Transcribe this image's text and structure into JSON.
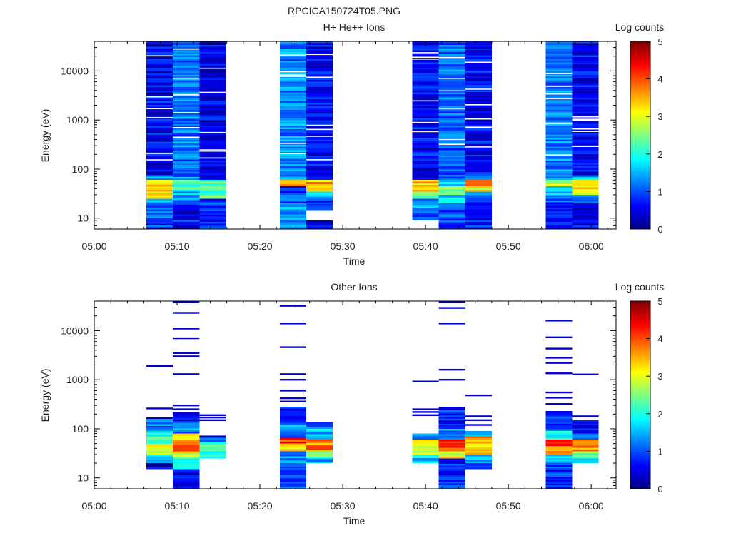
{
  "figure": {
    "title": "RPCICA150724T05.PNG"
  },
  "colorbar": {
    "label": "Log counts",
    "ticks": [
      "0",
      "1",
      "2",
      "3",
      "4",
      "5"
    ],
    "min": 0,
    "max": 5,
    "colors": [
      "#00007f",
      "#0000ff",
      "#007fff",
      "#00ffff",
      "#7fff7f",
      "#ffff00",
      "#ff7f00",
      "#ff0000",
      "#7f0000"
    ]
  },
  "chart_data": [
    {
      "type": "heatmap",
      "title": "H+ He++ Ions",
      "xlabel": "Time",
      "ylabel": "Energy (eV)",
      "x_ticks": [
        "05:00",
        "05:10",
        "05:20",
        "05:30",
        "05:40",
        "05:50",
        "06:00"
      ],
      "x_range_min": [
        0,
        63
      ],
      "y_scale": "log",
      "y_ticks": [
        "10",
        "100",
        "1000",
        "10000"
      ],
      "y_range": [
        6,
        40000
      ],
      "columns": [
        {
          "t0": 6.3,
          "t1": 9.5,
          "bands": [
            {
              "e0": 6,
              "e1": 10,
              "v": 0.9
            },
            {
              "e0": 10,
              "e1": 15,
              "v": 1.0
            },
            {
              "e0": 15,
              "e1": 25,
              "v": 1.3
            },
            {
              "e0": 25,
              "e1": 35,
              "v": 3.1
            },
            {
              "e0": 35,
              "e1": 60,
              "v": 3.3
            },
            {
              "e0": 60,
              "e1": 75,
              "v": 1.6
            },
            {
              "e0": 75,
              "e1": 40000,
              "v": 0.6
            }
          ]
        },
        {
          "t0": 9.5,
          "t1": 12.7,
          "bands": [
            {
              "e0": 6,
              "e1": 10,
              "v": 0.7
            },
            {
              "e0": 10,
              "e1": 20,
              "v": 0.6
            },
            {
              "e0": 20,
              "e1": 35,
              "v": 1.4
            },
            {
              "e0": 35,
              "e1": 60,
              "v": 2.1
            },
            {
              "e0": 60,
              "e1": 75,
              "v": 1.3
            },
            {
              "e0": 75,
              "e1": 40000,
              "v": 1.2
            }
          ]
        },
        {
          "t0": 12.7,
          "t1": 15.9,
          "bands": [
            {
              "e0": 6,
              "e1": 25,
              "v": 0.8
            },
            {
              "e0": 25,
              "e1": 60,
              "v": 2.2
            },
            {
              "e0": 60,
              "e1": 40000,
              "v": 0.5
            }
          ]
        },
        {
          "t0": 22.4,
          "t1": 25.6,
          "bands": [
            {
              "e0": 6,
              "e1": 10,
              "v": 1.2
            },
            {
              "e0": 10,
              "e1": 20,
              "v": 1.3
            },
            {
              "e0": 20,
              "e1": 30,
              "v": 1.0
            },
            {
              "e0": 30,
              "e1": 45,
              "v": 0.7
            },
            {
              "e0": 45,
              "e1": 60,
              "v": 3.4
            },
            {
              "e0": 60,
              "e1": 40000,
              "v": 1.3
            }
          ]
        },
        {
          "t0": 25.6,
          "t1": 28.8,
          "bands": [
            {
              "e0": 6,
              "e1": 9,
              "v": 0.5
            },
            {
              "e0": 14,
              "e1": 25,
              "v": 0.9
            },
            {
              "e0": 25,
              "e1": 35,
              "v": 1.5
            },
            {
              "e0": 35,
              "e1": 45,
              "v": 3.0
            },
            {
              "e0": 45,
              "e1": 60,
              "v": 3.6
            },
            {
              "e0": 60,
              "e1": 40000,
              "v": 0.6
            }
          ]
        },
        {
          "t0": 38.4,
          "t1": 41.6,
          "bands": [
            {
              "e0": 9,
              "e1": 15,
              "v": 0.9
            },
            {
              "e0": 15,
              "e1": 25,
              "v": 1.3
            },
            {
              "e0": 25,
              "e1": 35,
              "v": 2.2
            },
            {
              "e0": 35,
              "e1": 60,
              "v": 3.4
            },
            {
              "e0": 60,
              "e1": 40000,
              "v": 0.6
            }
          ]
        },
        {
          "t0": 41.6,
          "t1": 44.8,
          "bands": [
            {
              "e0": 6,
              "e1": 20,
              "v": 0.9
            },
            {
              "e0": 20,
              "e1": 30,
              "v": 1.6
            },
            {
              "e0": 30,
              "e1": 45,
              "v": 2.4
            },
            {
              "e0": 45,
              "e1": 60,
              "v": 1.9
            },
            {
              "e0": 60,
              "e1": 40000,
              "v": 1.1
            }
          ]
        },
        {
          "t0": 44.8,
          "t1": 48.0,
          "bands": [
            {
              "e0": 6,
              "e1": 25,
              "v": 0.7
            },
            {
              "e0": 25,
              "e1": 35,
              "v": 1.2
            },
            {
              "e0": 35,
              "e1": 45,
              "v": 3.1
            },
            {
              "e0": 45,
              "e1": 60,
              "v": 3.6
            },
            {
              "e0": 60,
              "e1": 80,
              "v": 1.3
            },
            {
              "e0": 80,
              "e1": 40000,
              "v": 0.6
            }
          ]
        },
        {
          "t0": 54.5,
          "t1": 57.7,
          "bands": [
            {
              "e0": 6,
              "e1": 25,
              "v": 0.9
            },
            {
              "e0": 25,
              "e1": 45,
              "v": 1.4
            },
            {
              "e0": 45,
              "e1": 60,
              "v": 2.6
            },
            {
              "e0": 60,
              "e1": 40000,
              "v": 1.3
            }
          ]
        },
        {
          "t0": 57.7,
          "t1": 60.9,
          "bands": [
            {
              "e0": 6,
              "e1": 20,
              "v": 0.6
            },
            {
              "e0": 20,
              "e1": 30,
              "v": 1.3
            },
            {
              "e0": 30,
              "e1": 60,
              "v": 3.3
            },
            {
              "e0": 60,
              "e1": 75,
              "v": 1.6
            },
            {
              "e0": 75,
              "e1": 40000,
              "v": 0.6
            }
          ]
        }
      ]
    },
    {
      "type": "heatmap",
      "title": "Other Ions",
      "xlabel": "Time",
      "ylabel": "Energy (eV)",
      "x_ticks": [
        "05:00",
        "05:10",
        "05:20",
        "05:30",
        "05:40",
        "05:50",
        "06:00"
      ],
      "x_range_min": [
        0,
        63
      ],
      "y_scale": "log",
      "y_ticks": [
        "10",
        "100",
        "1000",
        "10000"
      ],
      "y_range": [
        6,
        40000
      ],
      "columns": [
        {
          "t0": 6.3,
          "t1": 9.5,
          "bands": [
            {
              "e0": 15,
              "e1": 20,
              "v": 0.4
            },
            {
              "e0": 20,
              "e1": 30,
              "v": 1.7
            },
            {
              "e0": 30,
              "e1": 50,
              "v": 2.9
            },
            {
              "e0": 50,
              "e1": 90,
              "v": 2.1
            },
            {
              "e0": 90,
              "e1": 160,
              "v": 1.1
            },
            {
              "e0": 160,
              "e1": 170,
              "v": 0.3
            }
          ],
          "lines": [
            1900,
            260
          ]
        },
        {
          "t0": 9.5,
          "t1": 12.7,
          "bands": [
            {
              "e0": 6,
              "e1": 15,
              "v": 0.5
            },
            {
              "e0": 15,
              "e1": 25,
              "v": 1.6
            },
            {
              "e0": 25,
              "e1": 35,
              "v": 3.0
            },
            {
              "e0": 35,
              "e1": 60,
              "v": 3.9
            },
            {
              "e0": 60,
              "e1": 80,
              "v": 3.3
            },
            {
              "e0": 80,
              "e1": 130,
              "v": 1.3
            },
            {
              "e0": 130,
              "e1": 220,
              "v": 0.7
            }
          ],
          "lines": [
            38000,
            23000,
            11000,
            7000,
            3500,
            3000,
            1300,
            300,
            250
          ]
        },
        {
          "t0": 12.7,
          "t1": 15.9,
          "bands": [
            {
              "e0": 25,
              "e1": 35,
              "v": 2.0
            },
            {
              "e0": 35,
              "e1": 55,
              "v": 2.4
            },
            {
              "e0": 55,
              "e1": 70,
              "v": 1.4
            }
          ],
          "lines": [
            190,
            170,
            150,
            70
          ]
        },
        {
          "t0": 22.4,
          "t1": 25.6,
          "bands": [
            {
              "e0": 6,
              "e1": 20,
              "v": 0.9
            },
            {
              "e0": 20,
              "e1": 35,
              "v": 1.3
            },
            {
              "e0": 35,
              "e1": 50,
              "v": 3.2
            },
            {
              "e0": 50,
              "e1": 65,
              "v": 4.2
            },
            {
              "e0": 65,
              "e1": 120,
              "v": 1.3
            },
            {
              "e0": 120,
              "e1": 280,
              "v": 0.7
            }
          ],
          "lines": [
            32000,
            14000,
            4600,
            1300,
            1000,
            600,
            420,
            360
          ]
        },
        {
          "t0": 25.6,
          "t1": 28.8,
          "bands": [
            {
              "e0": 20,
              "e1": 25,
              "v": 1.5
            },
            {
              "e0": 25,
              "e1": 35,
              "v": 2.4
            },
            {
              "e0": 35,
              "e1": 60,
              "v": 3.7
            },
            {
              "e0": 60,
              "e1": 100,
              "v": 1.6
            },
            {
              "e0": 100,
              "e1": 140,
              "v": 1.0
            }
          ]
        },
        {
          "t0": 38.4,
          "t1": 41.6,
          "bands": [
            {
              "e0": 20,
              "e1": 30,
              "v": 1.7
            },
            {
              "e0": 30,
              "e1": 45,
              "v": 3.0
            },
            {
              "e0": 45,
              "e1": 60,
              "v": 3.4
            },
            {
              "e0": 60,
              "e1": 80,
              "v": 1.5
            }
          ],
          "lines": [
            920,
            250,
            220,
            190
          ]
        },
        {
          "t0": 41.6,
          "t1": 44.8,
          "bands": [
            {
              "e0": 6,
              "e1": 25,
              "v": 0.8
            },
            {
              "e0": 25,
              "e1": 35,
              "v": 3.1
            },
            {
              "e0": 35,
              "e1": 60,
              "v": 4.1
            },
            {
              "e0": 60,
              "e1": 100,
              "v": 1.3
            },
            {
              "e0": 100,
              "e1": 260,
              "v": 0.8
            }
          ],
          "lines": [
            38000,
            29000,
            14000,
            1600,
            1000,
            270
          ]
        },
        {
          "t0": 44.8,
          "t1": 48.0,
          "bands": [
            {
              "e0": 15,
              "e1": 20,
              "v": 0.5
            },
            {
              "e0": 20,
              "e1": 30,
              "v": 1.6
            },
            {
              "e0": 30,
              "e1": 50,
              "v": 3.2
            },
            {
              "e0": 50,
              "e1": 70,
              "v": 3.6
            },
            {
              "e0": 70,
              "e1": 90,
              "v": 1.3
            }
          ],
          "lines": [
            480,
            180,
            150,
            120
          ]
        },
        {
          "t0": 54.5,
          "t1": 57.7,
          "bands": [
            {
              "e0": 6,
              "e1": 20,
              "v": 0.9
            },
            {
              "e0": 20,
              "e1": 30,
              "v": 1.6
            },
            {
              "e0": 30,
              "e1": 45,
              "v": 3.6
            },
            {
              "e0": 45,
              "e1": 60,
              "v": 4.2
            },
            {
              "e0": 60,
              "e1": 90,
              "v": 1.8
            },
            {
              "e0": 90,
              "e1": 230,
              "v": 0.9
            }
          ],
          "lines": [
            16000,
            7300,
            4300,
            2800,
            2200,
            1350,
            550,
            430,
            320
          ]
        },
        {
          "t0": 57.7,
          "t1": 60.9,
          "bands": [
            {
              "e0": 20,
              "e1": 25,
              "v": 1.4
            },
            {
              "e0": 25,
              "e1": 35,
              "v": 2.5
            },
            {
              "e0": 35,
              "e1": 60,
              "v": 3.6
            },
            {
              "e0": 60,
              "e1": 80,
              "v": 1.5
            },
            {
              "e0": 80,
              "e1": 150,
              "v": 0.7
            }
          ],
          "lines": [
            1280,
            180
          ]
        }
      ]
    }
  ]
}
